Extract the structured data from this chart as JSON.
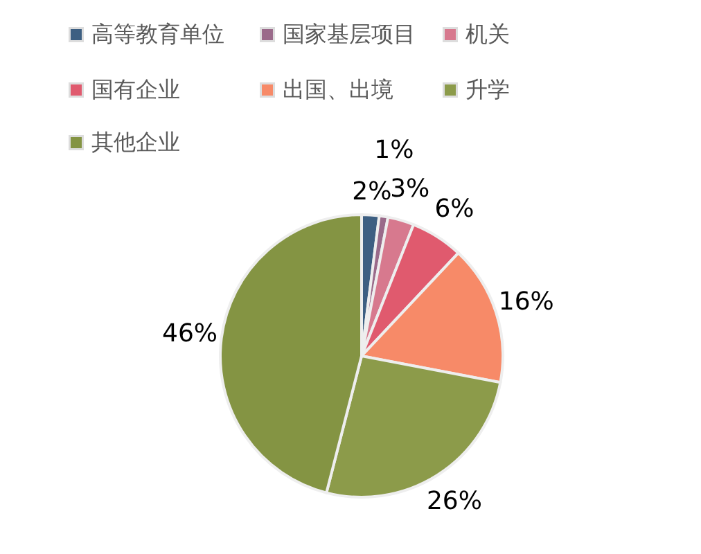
{
  "chart_data": {
    "type": "pie",
    "categories": [
      "高等教育单位",
      "国家基层项目",
      "机关",
      "国有企业",
      "出国、出境",
      "升学",
      "其他企业"
    ],
    "values": [
      2,
      1,
      3,
      6,
      16,
      26,
      46
    ],
    "colors": [
      "#3d5f82",
      "#9a6a8a",
      "#d7798e",
      "#e05a6e",
      "#f78a68",
      "#8c9b4a",
      "#849443"
    ],
    "value_labels": [
      "2%",
      "1%",
      "3%",
      "6%",
      "16%",
      "26%",
      "46%"
    ],
    "legend": "top"
  }
}
